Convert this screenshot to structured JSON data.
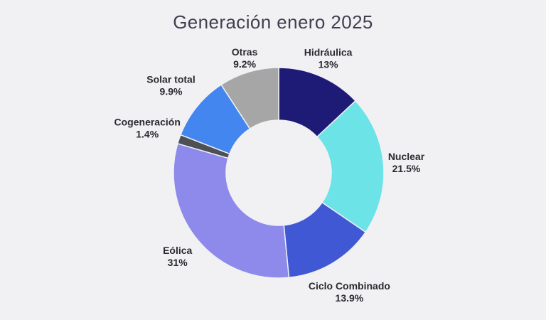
{
  "page": {
    "background": "#f1f1f4"
  },
  "chart_data": {
    "type": "pie",
    "title": "Generación enero 2025",
    "title_color": "#403f4e",
    "donut": true,
    "inner_radius_ratio": 0.5,
    "start_angle_deg": 0,
    "direction": "clockwise",
    "legend": "none",
    "labels_position": "outside",
    "label_text_color": "#2b2a2e",
    "categories": [
      "Hidráulica",
      "Nuclear",
      "Ciclo Combinado",
      "Eólica",
      "Cogeneración",
      "Solar total",
      "Otras"
    ],
    "values": [
      13,
      21.5,
      13.9,
      31,
      1.4,
      9.9,
      9.2
    ],
    "slices": [
      {
        "label": "Hidráulica",
        "value": 13,
        "display": "13%",
        "color": "#1e1b76",
        "label_r": 175
      },
      {
        "label": "Nuclear",
        "value": 21.5,
        "display": "21.5%",
        "color": "#6ce3e7",
        "label_r": 180
      },
      {
        "label": "Ciclo Combinado",
        "value": 13.9,
        "display": "13.9%",
        "color": "#4158d5",
        "label_r": 195
      },
      {
        "label": "Eólica",
        "value": 31,
        "display": "31%",
        "color": "#8d8aec",
        "label_r": 185
      },
      {
        "label": "Cogeneración",
        "value": 1.4,
        "display": "1.4%",
        "color": "#4d5055",
        "label_r": 195
      },
      {
        "label": "Solar total",
        "value": 9.9,
        "display": "9.9%",
        "color": "#4486ef",
        "label_r": 195
      },
      {
        "label": "Otras",
        "value": 9.2,
        "display": "9.2%",
        "color": "#a6a6a6",
        "label_r": 168
      }
    ]
  }
}
